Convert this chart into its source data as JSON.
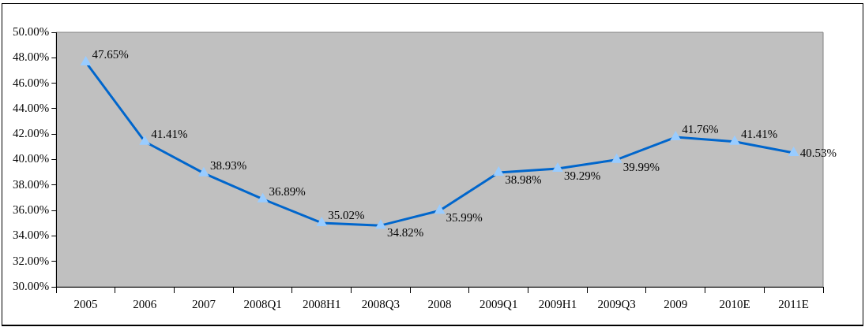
{
  "chart_data": {
    "type": "line",
    "categories": [
      "2005",
      "2006",
      "2007",
      "2008Q1",
      "2008H1",
      "2008Q3",
      "2008",
      "2009Q1",
      "2009H1",
      "2009Q3",
      "2009",
      "2010E",
      "2011E"
    ],
    "series": [
      {
        "color": "#0066cc",
        "values": [
          47.65,
          41.41,
          38.93,
          36.89,
          35.02,
          34.82,
          35.99,
          38.98,
          39.29,
          39.99,
          41.76,
          41.41,
          40.53
        ],
        "value_labels": [
          "47.65%",
          "41.41%",
          "38.93%",
          "36.89%",
          "35.02%",
          "34.82%",
          "35.99%",
          "38.98%",
          "39.29%",
          "39.99%",
          "41.76%",
          "41.41%",
          "40.53%"
        ]
      }
    ],
    "ylim": [
      30,
      50
    ],
    "yticks": [
      {
        "value": 30,
        "label": "30.00%"
      },
      {
        "value": 32,
        "label": "32.00%"
      },
      {
        "value": 34,
        "label": "34.00%"
      },
      {
        "value": 36,
        "label": "36.00%"
      },
      {
        "value": 38,
        "label": "38.00%"
      },
      {
        "value": 40,
        "label": "40.00%"
      },
      {
        "value": 42,
        "label": "42.00%"
      },
      {
        "value": 44,
        "label": "44.00%"
      },
      {
        "value": 46,
        "label": "46.00%"
      },
      {
        "value": 48,
        "label": "48.00%"
      },
      {
        "value": 50,
        "label": "50.00%"
      }
    ],
    "grid": false,
    "legend": false,
    "marker": "triangle",
    "line_style": "solid"
  }
}
